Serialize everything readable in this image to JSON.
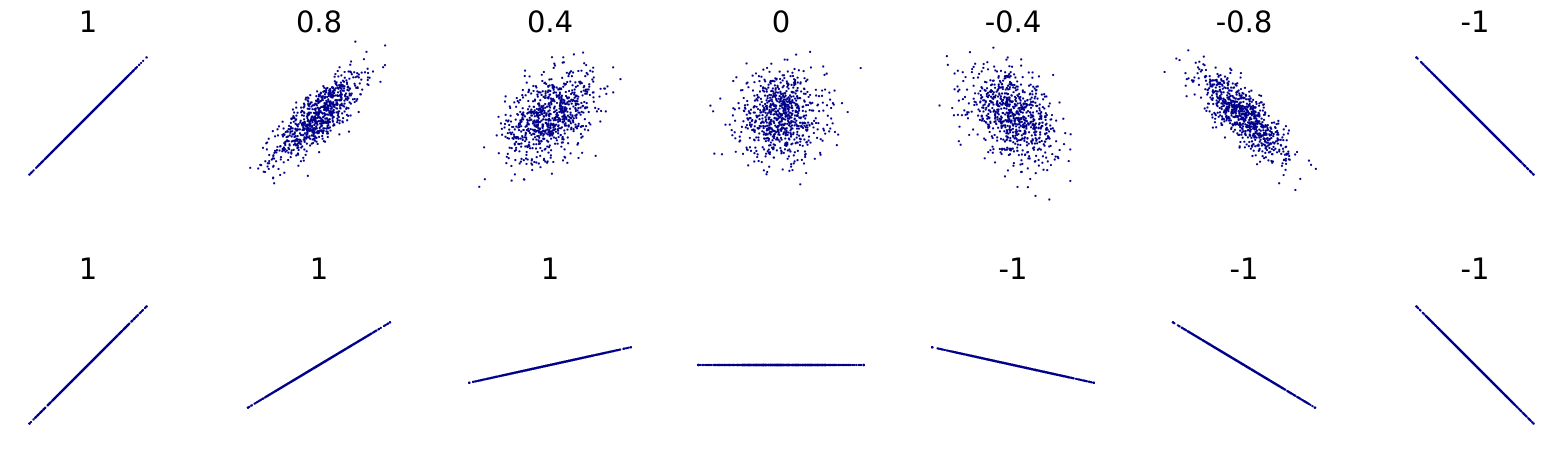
{
  "chart_data": {
    "type": "scatter",
    "color": "#00008b",
    "axes_visible": false,
    "grid": false,
    "rows": [
      {
        "panels": [
          {
            "title": "1",
            "correlation": 1,
            "slope": 1.0
          },
          {
            "title": "0.8",
            "correlation": 0.8,
            "spread_x": 1.0,
            "spread_y": 1.0
          },
          {
            "title": "0.4",
            "correlation": 0.4,
            "spread_x": 1.0,
            "spread_y": 1.0
          },
          {
            "title": "0",
            "correlation": 0,
            "spread_x": 1.0,
            "spread_y": 1.0
          },
          {
            "title": "-0.4",
            "correlation": -0.4,
            "spread_x": 1.0,
            "spread_y": 1.0
          },
          {
            "title": "-0.8",
            "correlation": -0.8,
            "spread_x": 1.0,
            "spread_y": 1.0
          },
          {
            "title": "-1",
            "correlation": -1,
            "slope": -1.0
          }
        ]
      },
      {
        "panels": [
          {
            "title": "1",
            "correlation": 1,
            "slope": 1.0
          },
          {
            "title": "1",
            "correlation": 1,
            "slope": 0.6
          },
          {
            "title": "1",
            "correlation": 1,
            "slope": 0.22
          },
          {
            "title": "",
            "correlation": null,
            "slope": 0.0
          },
          {
            "title": "-1",
            "correlation": -1,
            "slope": -0.22
          },
          {
            "title": "-1",
            "correlation": -1,
            "slope": -0.6
          },
          {
            "title": "-1",
            "correlation": -1,
            "slope": -1.0
          }
        ]
      }
    ]
  }
}
